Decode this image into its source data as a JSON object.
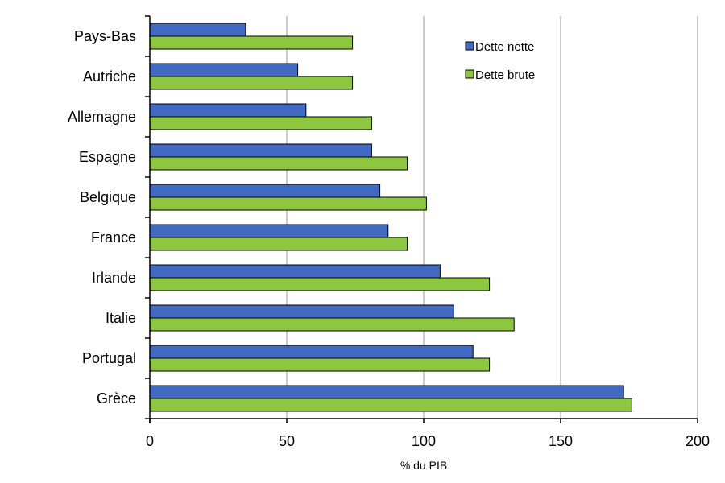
{
  "chart_data": {
    "type": "bar",
    "orientation": "horizontal",
    "categories": [
      "Pays-Bas",
      "Autriche",
      "Allemagne",
      "Espagne",
      "Belgique",
      "France",
      "Irlande",
      "Italie",
      "Portugal",
      "Grèce"
    ],
    "series": [
      {
        "name": "Dette nette",
        "color": "#4169C1",
        "values": [
          35,
          54,
          57,
          81,
          84,
          87,
          106,
          111,
          118,
          173
        ]
      },
      {
        "name": "Dette brute",
        "color": "#8DC63F",
        "values": [
          74,
          74,
          81,
          94,
          101,
          94,
          124,
          133,
          124,
          176
        ]
      }
    ],
    "xlabel": "% du PIB",
    "xlim": [
      0,
      200
    ],
    "xticks": [
      0,
      50,
      100,
      150,
      200
    ],
    "grid": "vertical",
    "legend_position": "top-right"
  }
}
